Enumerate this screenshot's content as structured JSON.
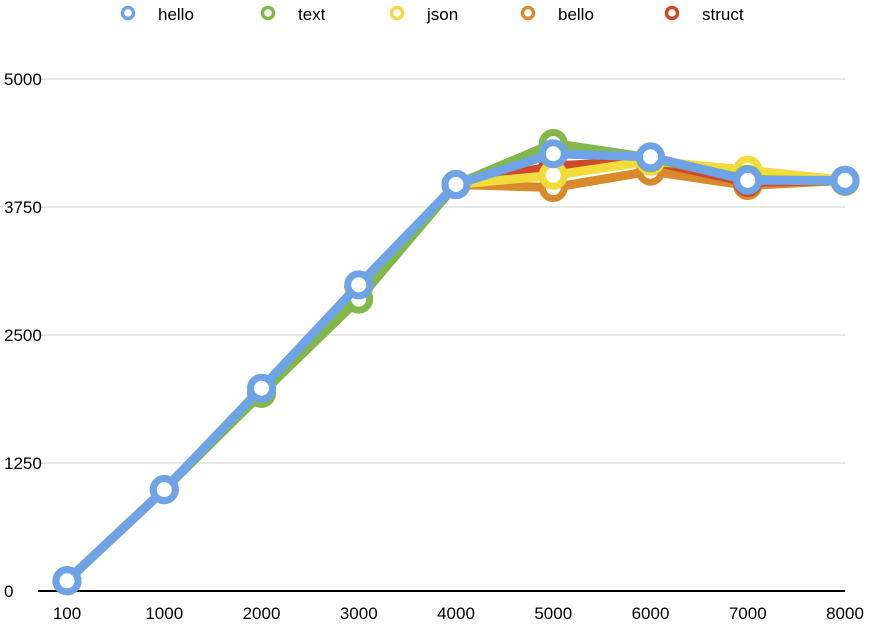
{
  "chart_data": {
    "type": "line",
    "title": "",
    "xlabel": "",
    "ylabel": "",
    "categories": [
      "100",
      "1000",
      "2000",
      "3000",
      "4000",
      "5000",
      "6000",
      "7000",
      "8000"
    ],
    "ylim": [
      0,
      5000
    ],
    "yticks": [
      "0",
      "1250",
      "2500",
      "3750",
      "5000"
    ],
    "grid": true,
    "legend_position": "top",
    "series": [
      {
        "name": "bello",
        "color": "#d98a2a",
        "values": [
          100,
          990,
          1960,
          2970,
          3970,
          3940,
          4100,
          3960,
          4010
        ]
      },
      {
        "name": "struct",
        "color": "#d04a2a",
        "values": [
          100,
          990,
          1960,
          2970,
          3970,
          4150,
          4200,
          3990,
          4010
        ]
      },
      {
        "name": "json",
        "color": "#f2dc3c",
        "values": [
          100,
          990,
          1960,
          2960,
          3970,
          4060,
          4200,
          4110,
          4010
        ]
      },
      {
        "name": "text",
        "color": "#82b84a",
        "values": [
          100,
          990,
          1930,
          2850,
          3970,
          4370,
          4230,
          4020,
          4000
        ]
      },
      {
        "name": "hello",
        "color": "#6fa3e8",
        "values": [
          100,
          990,
          1980,
          2990,
          3970,
          4270,
          4240,
          4010,
          4010
        ]
      }
    ],
    "legend_order": [
      "hello",
      "text",
      "json",
      "bello",
      "struct"
    ]
  }
}
